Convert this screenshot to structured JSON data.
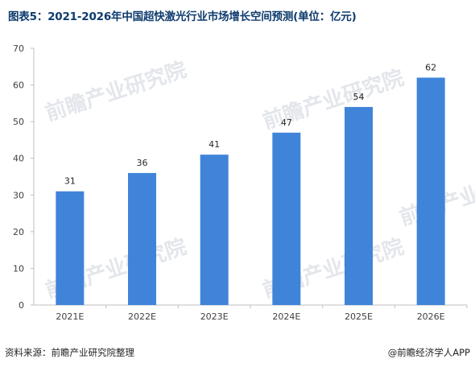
{
  "title": "图表5：2021-2026年中国超快激光行业市场增长空间预测(单位：亿元)",
  "footer": {
    "source": "资料来源：前瞻产业研究院整理",
    "brand": "@前瞻经济学人APP"
  },
  "watermark": "前瞻产业研究院",
  "colors": {
    "bar": "#3f84d9",
    "title": "#0e3b6e",
    "axis": "#bfbfbf"
  },
  "chart_data": {
    "type": "bar",
    "title": "图表5：2021-2026年中国超快激光行业市场增长空间预测(单位：亿元)",
    "categories": [
      "2021E",
      "2022E",
      "2023E",
      "2024E",
      "2025E",
      "2026E"
    ],
    "values": [
      31,
      36,
      41,
      47,
      54,
      62
    ],
    "xlabel": "",
    "ylabel": "",
    "ylim": [
      0,
      70
    ],
    "yticks": [
      0,
      10,
      20,
      30,
      40,
      50,
      60,
      70
    ],
    "grid": false,
    "data_labels": true
  }
}
